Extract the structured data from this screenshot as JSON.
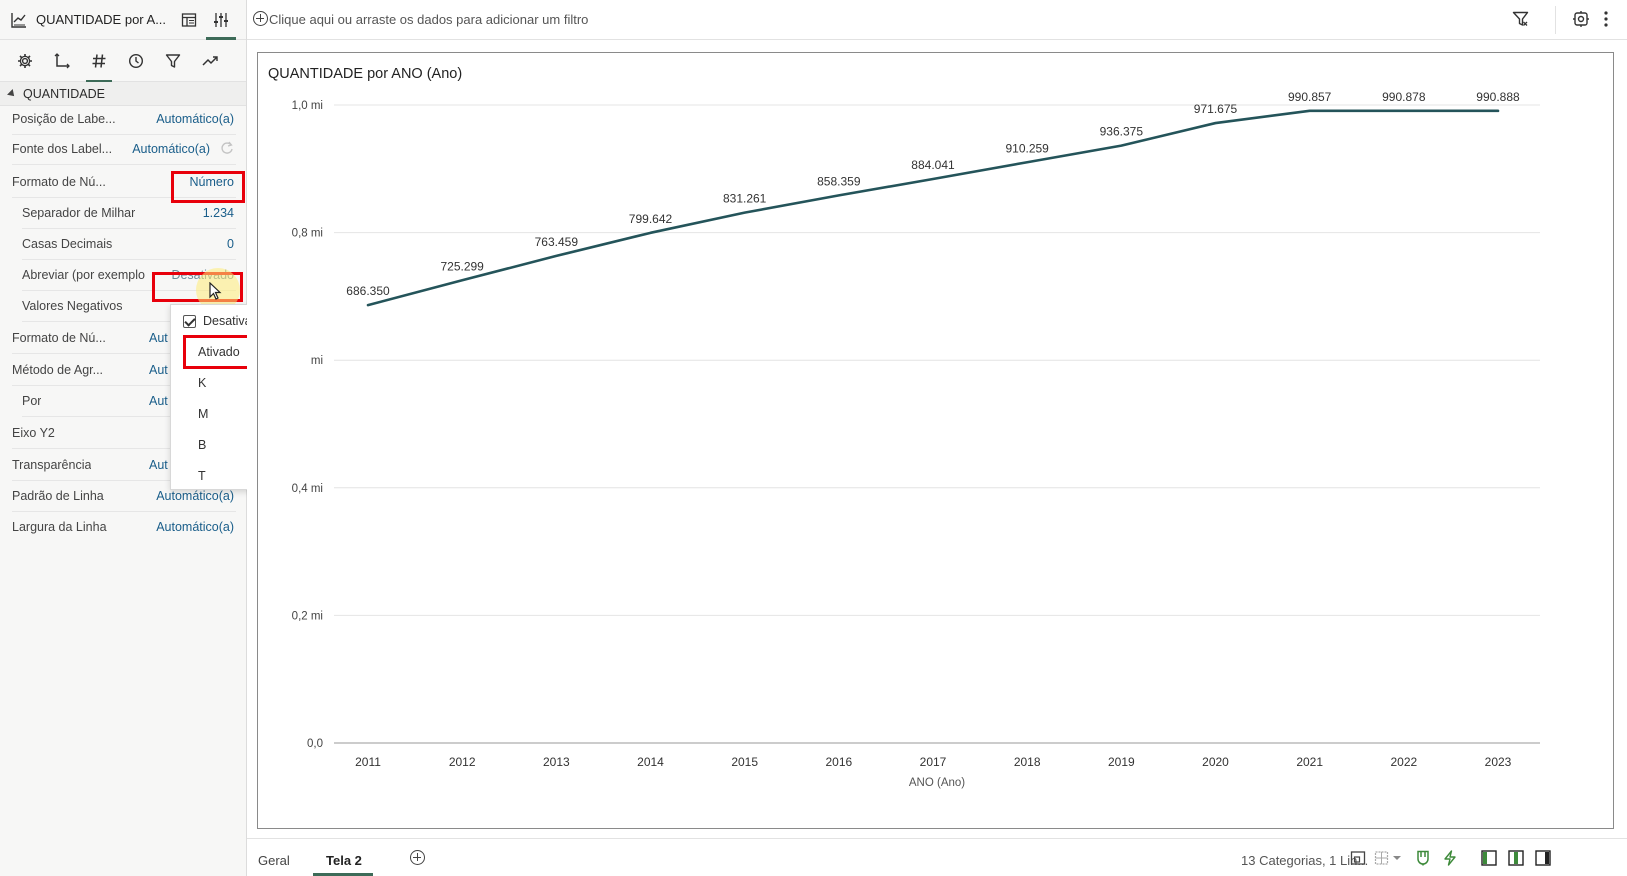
{
  "panel": {
    "title": "QUANTIDADE por A...",
    "section": "QUANTIDADE",
    "rows": [
      {
        "label": "Posição de Labe...",
        "value": "Automático(a)"
      },
      {
        "label": "Fonte dos Label...",
        "value": "Automático(a)"
      },
      {
        "label": "Formato de Nú...",
        "value": "Número"
      },
      {
        "label": "Separador de Milhar",
        "value": "1.234"
      },
      {
        "label": "Casas Decimais",
        "value": "0"
      },
      {
        "label": "Abreviar (por exemplo",
        "value": "Desativado"
      },
      {
        "label": "Valores Negativos",
        "value": ""
      },
      {
        "label": "Formato de Nú...",
        "value": "Aut"
      },
      {
        "label": "Método de Agr...",
        "value": "Aut"
      },
      {
        "label": "Por",
        "value": "Aut"
      },
      {
        "label": "Eixo Y2",
        "value": ""
      },
      {
        "label": "Transparência",
        "value": "Aut"
      },
      {
        "label": "Padrão de Linha",
        "value": "Automático(a)"
      },
      {
        "label": "Largura da Linha",
        "value": "Automático(a)"
      }
    ]
  },
  "dropdown": {
    "options": [
      "Desativado",
      "Ativado",
      "K",
      "M",
      "B",
      "T"
    ],
    "checked": "Desativado"
  },
  "filter_bar": {
    "hint": "Clique aqui ou arraste os dados para adicionar um filtro"
  },
  "bottom": {
    "tabs": [
      "Geral",
      "Tela 2"
    ],
    "active_tab": "Tela 2",
    "summary": "13 Categorias, 1 Lin..."
  },
  "colors": {
    "line": "#24545a",
    "accent": "#3d6b58",
    "highlight": "#e8000b",
    "link": "#1a5e8a"
  },
  "chart_data": {
    "type": "line",
    "title": "QUANTIDADE por ANO (Ano)",
    "xlabel": "ANO (Ano)",
    "ylabel": "",
    "categories": [
      "2011",
      "2012",
      "2013",
      "2014",
      "2015",
      "2016",
      "2017",
      "2018",
      "2019",
      "2020",
      "2021",
      "2022",
      "2023"
    ],
    "series": [
      {
        "values": [
          686350,
          725299,
          763459,
          799642,
          831261,
          858359,
          884041,
          910259,
          936375,
          971675,
          990857,
          990878,
          990888
        ],
        "labels": [
          "686.350",
          "725.299",
          "763.459",
          "799.642",
          "831.261",
          "858.359",
          "884.041",
          "910.259",
          "936.375",
          "971.675",
          "990.857",
          "990.878",
          "990.888"
        ]
      }
    ],
    "ylim": [
      0,
      1000000
    ],
    "yticks": [
      {
        "value": 0,
        "label": "0,0"
      },
      {
        "value": 200000,
        "label": "0,2 mi"
      },
      {
        "value": 400000,
        "label": "0,4 mi"
      },
      {
        "value": 600000,
        "label": "mi"
      },
      {
        "value": 800000,
        "label": "0,8 mi"
      },
      {
        "value": 1000000,
        "label": "1,0 mi"
      }
    ],
    "grid": true,
    "legend": "none"
  }
}
